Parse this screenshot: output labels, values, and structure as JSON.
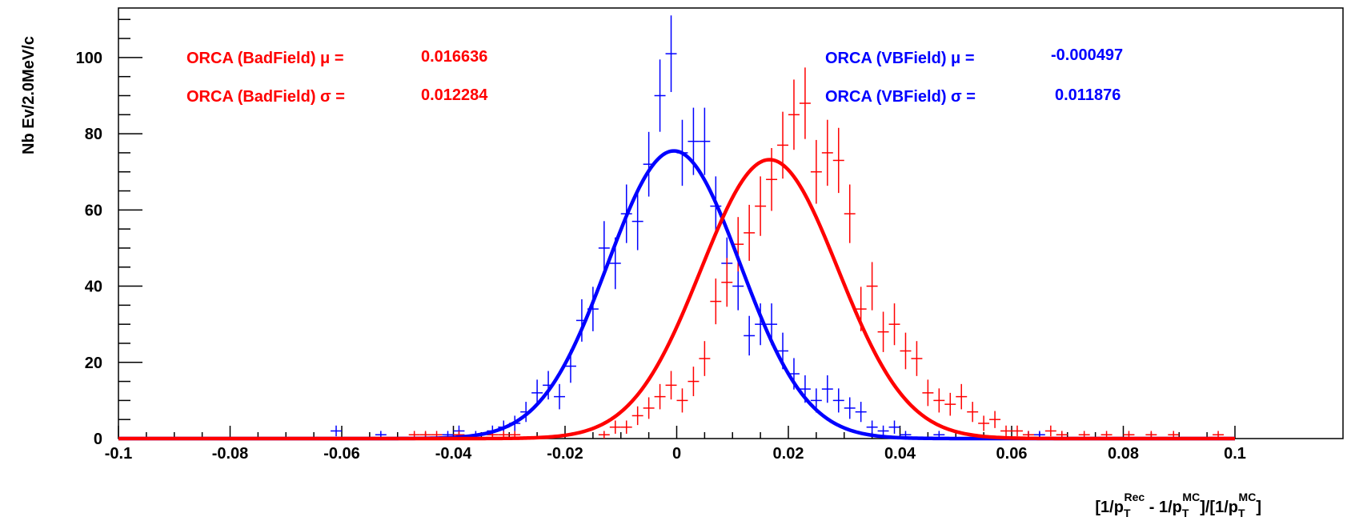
{
  "chart_data": {
    "type": "scatter",
    "xlabel": "",
    "ylabel": "Nb Ev/2.0MeV/c",
    "xlim": [
      -0.1,
      0.1
    ],
    "ylim": [
      0,
      113
    ],
    "x_ticks": [
      "-0.1",
      "-0.08",
      "-0.06",
      "-0.04",
      "-0.02",
      "0",
      "0.02",
      "0.04",
      "0.06",
      "0.08",
      "0.1"
    ],
    "y_ticks": [
      "0",
      "20",
      "40",
      "60",
      "80",
      "100"
    ],
    "xlabel_parts": {
      "p1": "[1/p",
      "sub1": "T",
      "sup1": "Rec",
      "p2": " - 1/p",
      "sub2": "T",
      "sup2": "MC",
      "p3": "]/[1/p",
      "sub3": "T",
      "sup3": "MC",
      "p4": "]"
    },
    "grid": false,
    "colors": {
      "bad": "#ff0000",
      "vb": "#0000ff",
      "axis": "#000000"
    },
    "annotations": {
      "bad_mu_label": "ORCA (BadField) μ =",
      "bad_mu_value": "0.016636",
      "bad_sigma_label": "ORCA (BadField) σ =",
      "bad_sigma_value": "0.012284",
      "vb_mu_label": "ORCA (VBField) μ =",
      "vb_mu_value": "-0.000497",
      "vb_sigma_label": "ORCA (VBField) σ =",
      "vb_sigma_value": "0.011876"
    },
    "series": [
      {
        "key": "vb",
        "color": "#0000ff",
        "fit": {
          "type": "gaussian",
          "amplitude": 75.5,
          "mean": -0.000497,
          "sigma": 0.011876
        },
        "points": [
          [
            -0.061,
            2
          ],
          [
            -0.053,
            1
          ],
          [
            -0.041,
            1
          ],
          [
            -0.039,
            2
          ],
          [
            -0.036,
            1
          ],
          [
            -0.033,
            2
          ],
          [
            -0.031,
            3
          ],
          [
            -0.029,
            4
          ],
          [
            -0.027,
            7
          ],
          [
            -0.025,
            12
          ],
          [
            -0.023,
            14
          ],
          [
            -0.021,
            11
          ],
          [
            -0.019,
            19
          ],
          [
            -0.017,
            31
          ],
          [
            -0.015,
            34
          ],
          [
            -0.013,
            50
          ],
          [
            -0.011,
            46
          ],
          [
            -0.009,
            59
          ],
          [
            -0.007,
            57
          ],
          [
            -0.005,
            72
          ],
          [
            -0.003,
            90
          ],
          [
            -0.001,
            101
          ],
          [
            0.001,
            75
          ],
          [
            0.003,
            78
          ],
          [
            0.005,
            78
          ],
          [
            0.007,
            61
          ],
          [
            0.009,
            46
          ],
          [
            0.011,
            40
          ],
          [
            0.013,
            27
          ],
          [
            0.015,
            30
          ],
          [
            0.017,
            30
          ],
          [
            0.019,
            23
          ],
          [
            0.021,
            17
          ],
          [
            0.023,
            13
          ],
          [
            0.025,
            10
          ],
          [
            0.027,
            13
          ],
          [
            0.029,
            10
          ],
          [
            0.031,
            8
          ],
          [
            0.033,
            7
          ],
          [
            0.035,
            3
          ],
          [
            0.037,
            2
          ],
          [
            0.039,
            3
          ],
          [
            0.041,
            1
          ],
          [
            0.047,
            1
          ],
          [
            0.063,
            1
          ],
          [
            0.065,
            1
          ],
          [
            0.069,
            1
          ]
        ]
      },
      {
        "key": "bad",
        "color": "#ff0000",
        "fit": {
          "type": "gaussian",
          "amplitude": 73.2,
          "mean": 0.016636,
          "sigma": 0.012284
        },
        "points": [
          [
            -0.047,
            1
          ],
          [
            -0.045,
            1
          ],
          [
            -0.043,
            1
          ],
          [
            -0.039,
            1
          ],
          [
            -0.033,
            1
          ],
          [
            -0.031,
            1
          ],
          [
            -0.029,
            1
          ],
          [
            -0.013,
            1
          ],
          [
            -0.011,
            3
          ],
          [
            -0.009,
            3
          ],
          [
            -0.007,
            6
          ],
          [
            -0.005,
            8
          ],
          [
            -0.003,
            11
          ],
          [
            -0.001,
            14
          ],
          [
            0.001,
            10
          ],
          [
            0.003,
            15
          ],
          [
            0.005,
            21
          ],
          [
            0.007,
            36
          ],
          [
            0.009,
            41
          ],
          [
            0.011,
            51
          ],
          [
            0.013,
            54
          ],
          [
            0.015,
            61
          ],
          [
            0.017,
            68
          ],
          [
            0.019,
            77
          ],
          [
            0.021,
            85
          ],
          [
            0.023,
            88
          ],
          [
            0.025,
            70
          ],
          [
            0.027,
            75
          ],
          [
            0.029,
            73
          ],
          [
            0.031,
            59
          ],
          [
            0.033,
            34
          ],
          [
            0.035,
            40
          ],
          [
            0.037,
            28
          ],
          [
            0.039,
            30
          ],
          [
            0.041,
            23
          ],
          [
            0.043,
            21
          ],
          [
            0.045,
            12
          ],
          [
            0.047,
            10
          ],
          [
            0.049,
            9
          ],
          [
            0.051,
            11
          ],
          [
            0.053,
            7
          ],
          [
            0.055,
            4
          ],
          [
            0.057,
            5
          ],
          [
            0.059,
            2
          ],
          [
            0.061,
            2
          ],
          [
            0.063,
            1
          ],
          [
            0.067,
            2
          ],
          [
            0.069,
            1
          ],
          [
            0.073,
            1
          ],
          [
            0.077,
            1
          ],
          [
            0.081,
            1
          ],
          [
            0.085,
            1
          ],
          [
            0.089,
            1
          ],
          [
            0.097,
            1
          ]
        ]
      }
    ]
  }
}
